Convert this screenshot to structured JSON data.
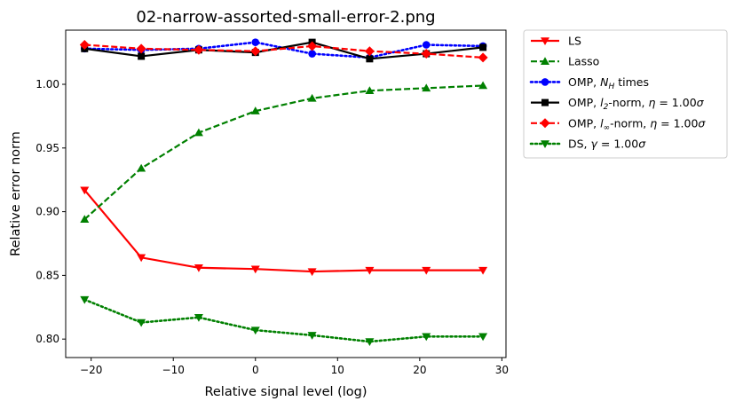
{
  "chart_data": {
    "type": "line",
    "title": "02-narrow-assorted-small-error-2.png",
    "xlabel": "Relative signal level (log)",
    "ylabel": "Relative error norm",
    "xlim": [
      -23.1,
      30.5
    ],
    "ylim": [
      0.7855,
      1.0425
    ],
    "xticks": [
      -20,
      -10,
      0,
      10,
      20,
      30
    ],
    "xtick_labels": [
      "−20",
      "−10",
      "0",
      "10",
      "20",
      "30"
    ],
    "yticks": [
      0.8,
      0.85,
      0.9,
      0.95,
      1.0
    ],
    "ytick_labels": [
      "0.80",
      "0.85",
      "0.90",
      "0.95",
      "1.00"
    ],
    "grid": false,
    "legend_position": "outside-right-top",
    "x": [
      -20.8,
      -13.9,
      -6.9,
      0.0,
      6.9,
      13.9,
      20.8,
      27.7
    ],
    "series": [
      {
        "name": "LS",
        "color": "#ff0000",
        "dash": "solid",
        "marker": "triangle-down",
        "values": [
          0.917,
          0.864,
          0.856,
          0.855,
          0.853,
          0.854,
          0.854,
          0.854
        ]
      },
      {
        "name": "Lasso",
        "color": "#008000",
        "dash": "dashed",
        "marker": "triangle-up",
        "values": [
          0.894,
          0.934,
          0.962,
          0.979,
          0.989,
          0.995,
          0.997,
          0.999
        ]
      },
      {
        "name": "OMP, $N_H$ times",
        "color": "#0000ff",
        "dash": "dotted",
        "marker": "circle",
        "values": [
          1.028,
          1.027,
          1.028,
          1.033,
          1.024,
          1.021,
          1.031,
          1.03
        ]
      },
      {
        "name": "OMP, $l_2$-norm, $\\eta$ = 1.00$\\sigma$",
        "color": "#000000",
        "dash": "solid",
        "marker": "square",
        "values": [
          1.028,
          1.022,
          1.027,
          1.025,
          1.033,
          1.02,
          1.024,
          1.029
        ]
      },
      {
        "name": "OMP, $l_\\infty$-norm, $\\eta$ = 1.00$\\sigma$",
        "color": "#ff0000",
        "dash": "dashed",
        "marker": "diamond",
        "values": [
          1.031,
          1.028,
          1.027,
          1.026,
          1.03,
          1.026,
          1.024,
          1.021
        ]
      },
      {
        "name": "DS, $\\gamma$ = 1.00$\\sigma$",
        "color": "#008000",
        "dash": "dotted",
        "marker": "triangle-down",
        "values": [
          0.831,
          0.813,
          0.817,
          0.807,
          0.803,
          0.798,
          0.802,
          0.802
        ]
      }
    ]
  }
}
